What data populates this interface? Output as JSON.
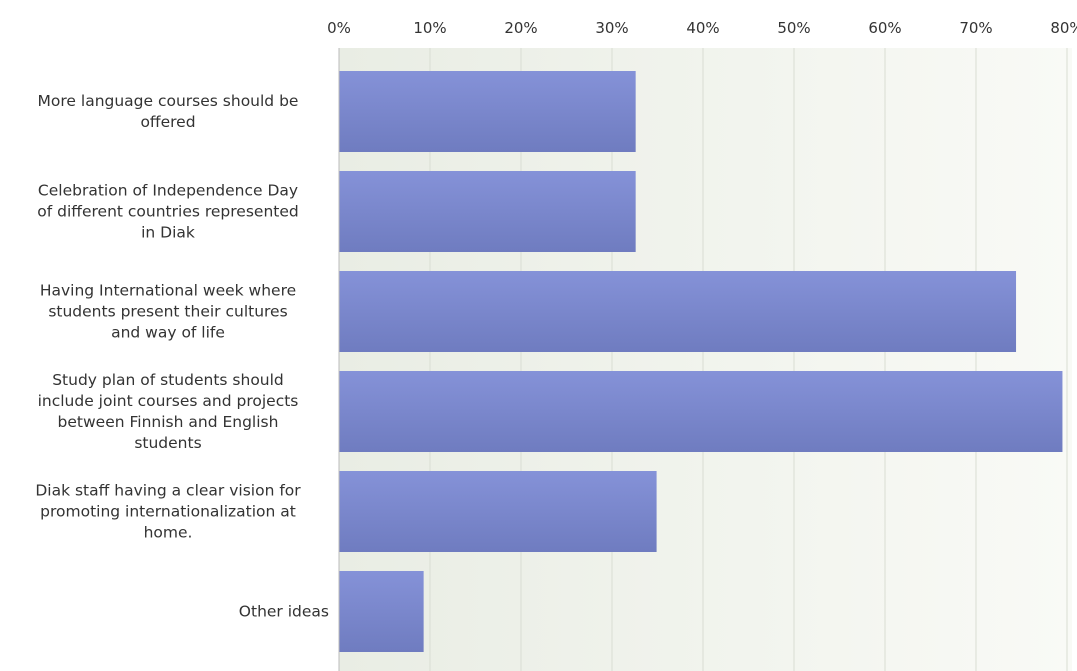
{
  "chart_data": {
    "type": "bar",
    "orientation": "horizontal",
    "title": "",
    "xlabel": "",
    "ylabel": "",
    "xlim": [
      0,
      80
    ],
    "x_ticks": [
      "0%",
      "10%",
      "20%",
      "30%",
      "40%",
      "50%",
      "60%",
      "70%",
      "80%"
    ],
    "x_axis_position": "top",
    "grid": true,
    "legend": "none",
    "bar_color": "#7b88cf",
    "categories": [
      [
        "More language courses should be",
        "offered"
      ],
      [
        "Celebration of Independence Day",
        "of different countries represented",
        "in Diak"
      ],
      [
        "Having International week where",
        "students present their cultures",
        "and way of life"
      ],
      [
        "Study plan of students should",
        "include joint courses and projects",
        "between Finnish and English",
        "students"
      ],
      [
        "Diak staff having a clear vision for",
        "promoting internationalization at",
        "home."
      ],
      [
        "Other ideas"
      ]
    ],
    "values": [
      32.6,
      32.6,
      74.4,
      79.5,
      34.9,
      9.3
    ]
  }
}
